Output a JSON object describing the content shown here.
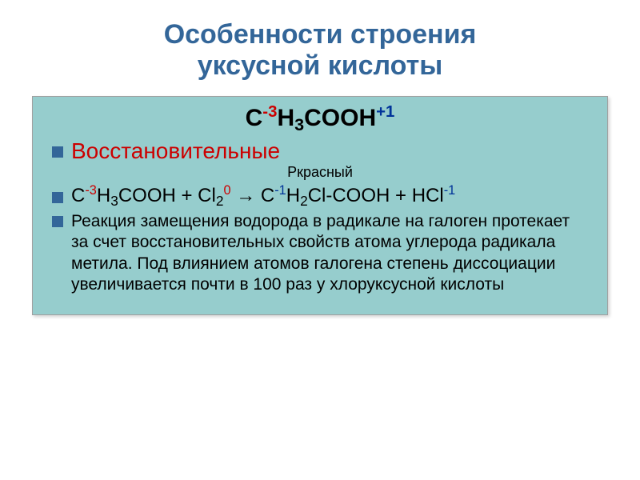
{
  "title_line1": "Особенности строения",
  "title_line2": "уксусной кислоты",
  "formula": {
    "p1": "C",
    "e1": "-3",
    "p2": "H",
    "s2": "3",
    "p3": "COOH",
    "e3": "+1"
  },
  "red_heading": "Восстановительные",
  "catalyst": "Ркрасный",
  "rxn": {
    "a1": "C",
    "ae1": "-3",
    "a2": "H",
    "as2": "3",
    "a3": "COOH",
    "plus1": " + ",
    "b1": "Cl",
    "bs2": "2",
    "be1": "0",
    "arrow": " → ",
    "c1": "C",
    "ce1": "-1",
    "c2": "H",
    "cs2": "2",
    "c3": "Cl-COOH",
    "plus2": " + ",
    "d1": "HCl",
    "de1": "-1"
  },
  "body1": "Реакция замещения водорода в радикале на галоген протекает за счет восстановительных свойств атома углерода радикала метила. Под влиянием атомов галогена степень диссоциации увеличивается почти в 100 раз у хлоруксусной кислоты",
  "colors": {
    "title": "#336699",
    "box_bg": "#96cdcd",
    "bullet": "#336699",
    "red": "#cc0000",
    "blue": "#003399"
  }
}
